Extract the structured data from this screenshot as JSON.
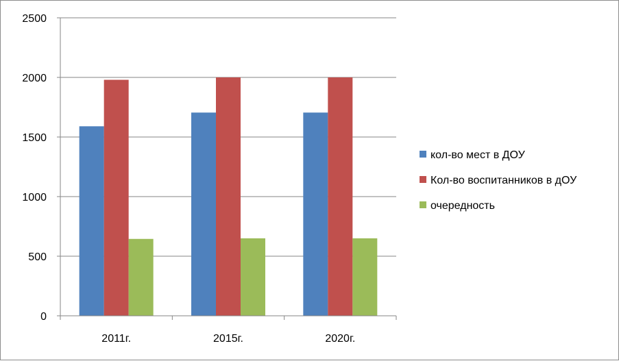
{
  "chart_data": {
    "type": "bar",
    "title": "",
    "xlabel": "",
    "ylabel": "",
    "categories": [
      "2011г.",
      "2015г.",
      "2020г."
    ],
    "series": [
      {
        "name": "кол-во мест в ДОУ",
        "color": "#4F81BD",
        "values": [
          1590,
          1705,
          1705
        ]
      },
      {
        "name": "Кол-во воспитанников в дОУ",
        "color": "#C0504D",
        "values": [
          1980,
          2000,
          2000
        ]
      },
      {
        "name": "очередность",
        "color": "#9BBB59",
        "values": [
          645,
          650,
          650
        ]
      }
    ],
    "ylim": [
      0,
      2500
    ],
    "yticks": [
      0,
      500,
      1000,
      1500,
      2000,
      2500
    ],
    "grid": true,
    "legend_position": "right"
  }
}
